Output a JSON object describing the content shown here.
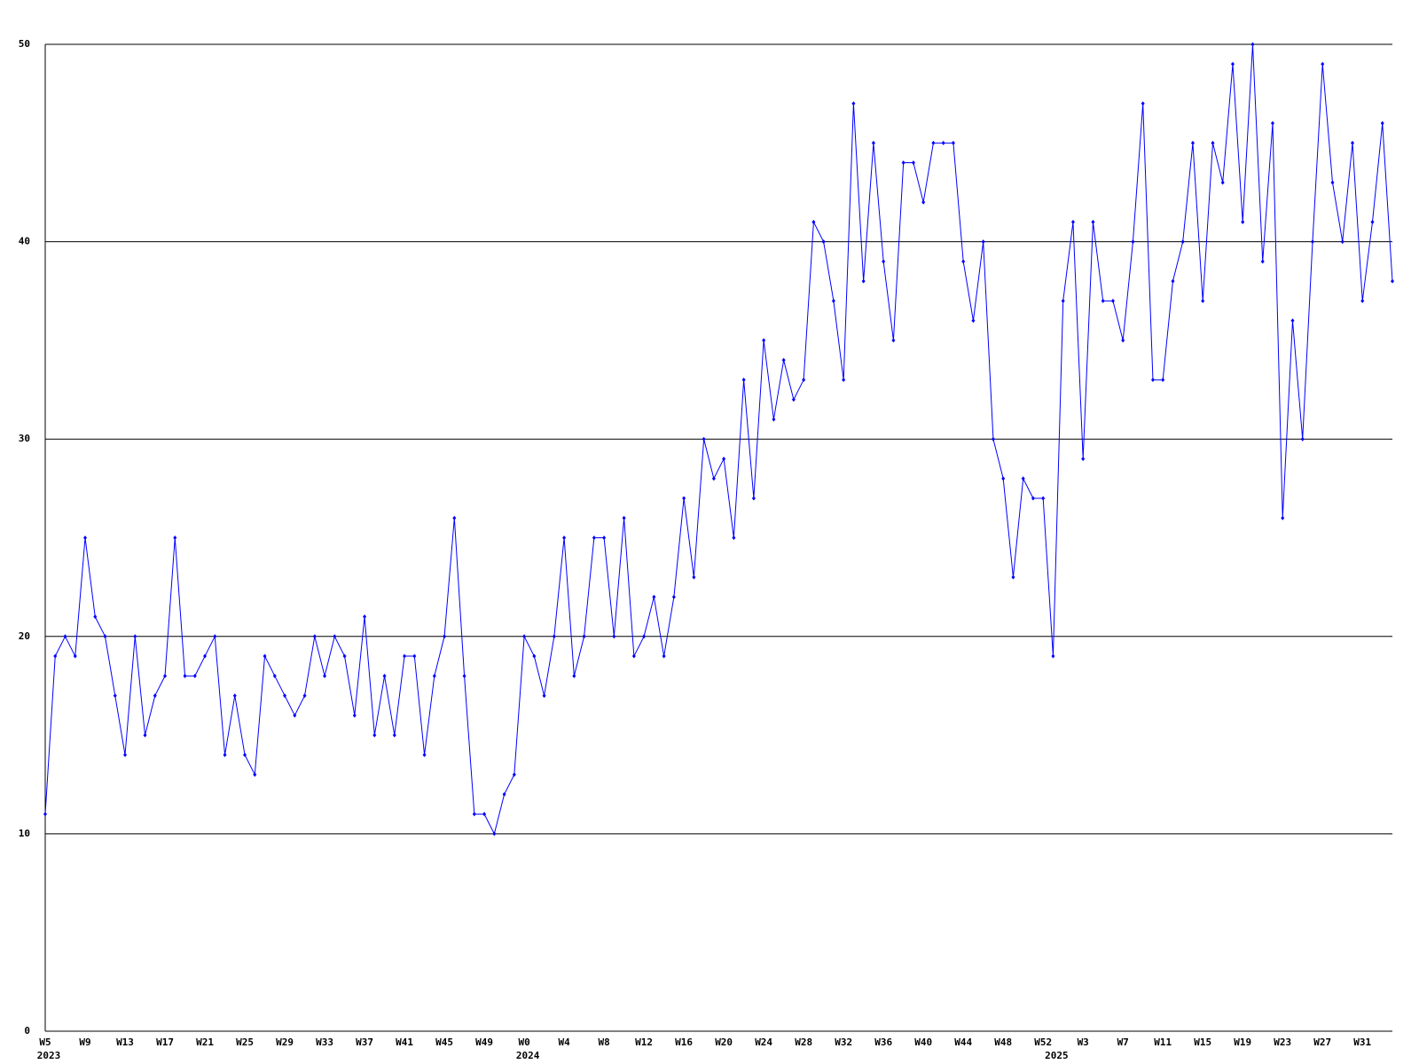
{
  "chart_data": {
    "type": "line",
    "categories": [
      "W5",
      null,
      null,
      null,
      "W9",
      null,
      null,
      null,
      "W13",
      null,
      null,
      null,
      "W17",
      null,
      null,
      null,
      "W21",
      null,
      null,
      null,
      "W25",
      null,
      null,
      null,
      "W29",
      null,
      null,
      null,
      "W33",
      null,
      null,
      null,
      "W37",
      null,
      null,
      null,
      "W41",
      null,
      null,
      null,
      "W45",
      null,
      null,
      null,
      "W49",
      null,
      null,
      null,
      "W0",
      null,
      null,
      null,
      "W4",
      null,
      null,
      null,
      "W8",
      null,
      null,
      null,
      "W12",
      null,
      null,
      null,
      "W16",
      null,
      null,
      null,
      "W20",
      null,
      null,
      null,
      "W24",
      null,
      null,
      null,
      "W28",
      null,
      null,
      null,
      "W32",
      null,
      null,
      null,
      "W36",
      null,
      null,
      null,
      "W40",
      null,
      null,
      null,
      "W44",
      null,
      null,
      null,
      "W48",
      null,
      null,
      null,
      "W52",
      null,
      null,
      null,
      "W3",
      null,
      null,
      null,
      "W7",
      null,
      null,
      null,
      "W11",
      null,
      null,
      null,
      "W15",
      null,
      null,
      null,
      "W19",
      null,
      null,
      null,
      "W23",
      null,
      null,
      null,
      "W27",
      null,
      null,
      null,
      "W31",
      null,
      null,
      null
    ],
    "year_labels": [
      {
        "index": 0,
        "label": "2023"
      },
      {
        "index": 48,
        "label": "2024"
      },
      {
        "index": 101,
        "label": "2025"
      }
    ],
    "series": [
      {
        "color": "#0000ff",
        "values": [
          11,
          19,
          20,
          19,
          25,
          21,
          20,
          17,
          14,
          20,
          15,
          17,
          18,
          25,
          18,
          18,
          19,
          20,
          14,
          17,
          14,
          13,
          19,
          18,
          17,
          16,
          17,
          20,
          18,
          20,
          19,
          16,
          21,
          15,
          18,
          15,
          19,
          19,
          14,
          18,
          20,
          26,
          18,
          11,
          11,
          10,
          12,
          13,
          20,
          19,
          17,
          20,
          25,
          18,
          20,
          25,
          25,
          20,
          26,
          19,
          20,
          22,
          19,
          22,
          27,
          23,
          30,
          28,
          29,
          25,
          33,
          27,
          35,
          31,
          34,
          32,
          33,
          41,
          40,
          37,
          33,
          47,
          38,
          45,
          39,
          35,
          44,
          44,
          42,
          45,
          45,
          45,
          39,
          36,
          40,
          30,
          28,
          23,
          28,
          27,
          27,
          19,
          37,
          41,
          29,
          41,
          37,
          37,
          35,
          40,
          47,
          33,
          33,
          38,
          40,
          45,
          37,
          45,
          43,
          49,
          41,
          50,
          39,
          46,
          26,
          36,
          30,
          40,
          49,
          43,
          40,
          45,
          37,
          41,
          46,
          38
        ]
      }
    ],
    "ylim": [
      0,
      50
    ],
    "yticks": [
      0,
      10,
      20,
      30,
      40,
      50
    ],
    "grid": true
  }
}
